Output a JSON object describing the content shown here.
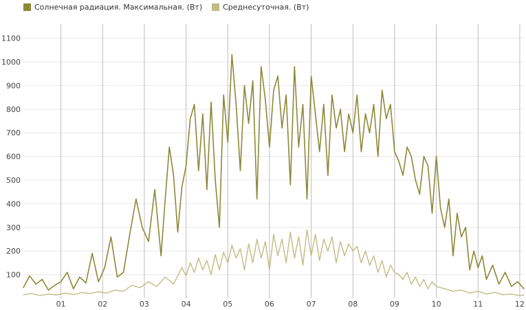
{
  "legend": {
    "max_label": "Солнечная радиация. Максимальная. (Вт)",
    "avg_label": "Среднесуточная. (Вт)"
  },
  "colors": {
    "max": "#8c8838",
    "avg": "#bfbd84",
    "vgrid": "#bdbdbd",
    "hgrid": "#e8e8e8"
  },
  "chart_data": {
    "type": "line",
    "title": "",
    "xlabel": "",
    "ylabel": "",
    "ylim": [
      0,
      1160
    ],
    "yticks": [
      100,
      200,
      300,
      400,
      500,
      600,
      700,
      800,
      900,
      1000,
      1100
    ],
    "x_unit": "month",
    "xlim": [
      0.1,
      12.1
    ],
    "xticks": [
      {
        "value": 1,
        "label": "01"
      },
      {
        "value": 2,
        "label": "02"
      },
      {
        "value": 3,
        "label": "03"
      },
      {
        "value": 4,
        "label": "04"
      },
      {
        "value": 5,
        "label": "05"
      },
      {
        "value": 6,
        "label": "06"
      },
      {
        "value": 7,
        "label": "07"
      },
      {
        "value": 8,
        "label": "08"
      },
      {
        "value": 9,
        "label": "09"
      },
      {
        "value": 10,
        "label": "10"
      },
      {
        "value": 11,
        "label": "11"
      },
      {
        "value": 12,
        "label": "12"
      }
    ],
    "legend_position": "top-left",
    "grid": {
      "vertical": true,
      "horizontal": true
    },
    "series": [
      {
        "name": "Солнечная радиация. Максимальная. (Вт)",
        "color": "#8c8838",
        "points": [
          [
            0.1,
            45
          ],
          [
            0.25,
            95
          ],
          [
            0.4,
            60
          ],
          [
            0.55,
            80
          ],
          [
            0.7,
            35
          ],
          [
            0.85,
            55
          ],
          [
            1.0,
            70
          ],
          [
            1.15,
            110
          ],
          [
            1.3,
            40
          ],
          [
            1.45,
            90
          ],
          [
            1.6,
            65
          ],
          [
            1.75,
            190
          ],
          [
            1.9,
            70
          ],
          [
            2.05,
            130
          ],
          [
            2.2,
            260
          ],
          [
            2.35,
            90
          ],
          [
            2.5,
            110
          ],
          [
            2.65,
            270
          ],
          [
            2.8,
            420
          ],
          [
            2.95,
            300
          ],
          [
            3.1,
            240
          ],
          [
            3.25,
            460
          ],
          [
            3.4,
            180
          ],
          [
            3.5,
            420
          ],
          [
            3.6,
            640
          ],
          [
            3.7,
            520
          ],
          [
            3.8,
            280
          ],
          [
            3.9,
            470
          ],
          [
            4.0,
            560
          ],
          [
            4.1,
            760
          ],
          [
            4.2,
            820
          ],
          [
            4.3,
            540
          ],
          [
            4.4,
            780
          ],
          [
            4.5,
            460
          ],
          [
            4.6,
            830
          ],
          [
            4.7,
            500
          ],
          [
            4.8,
            300
          ],
          [
            4.9,
            860
          ],
          [
            5.0,
            660
          ],
          [
            5.1,
            1030
          ],
          [
            5.2,
            820
          ],
          [
            5.3,
            540
          ],
          [
            5.4,
            900
          ],
          [
            5.5,
            740
          ],
          [
            5.6,
            920
          ],
          [
            5.7,
            420
          ],
          [
            5.8,
            980
          ],
          [
            5.9,
            840
          ],
          [
            6.0,
            640
          ],
          [
            6.1,
            880
          ],
          [
            6.2,
            940
          ],
          [
            6.3,
            720
          ],
          [
            6.4,
            860
          ],
          [
            6.5,
            480
          ],
          [
            6.6,
            980
          ],
          [
            6.7,
            640
          ],
          [
            6.8,
            820
          ],
          [
            6.9,
            420
          ],
          [
            7.0,
            940
          ],
          [
            7.1,
            780
          ],
          [
            7.2,
            620
          ],
          [
            7.3,
            820
          ],
          [
            7.4,
            520
          ],
          [
            7.5,
            860
          ],
          [
            7.6,
            720
          ],
          [
            7.7,
            800
          ],
          [
            7.8,
            620
          ],
          [
            7.9,
            780
          ],
          [
            8.0,
            700
          ],
          [
            8.1,
            860
          ],
          [
            8.2,
            620
          ],
          [
            8.3,
            780
          ],
          [
            8.4,
            700
          ],
          [
            8.5,
            820
          ],
          [
            8.6,
            600
          ],
          [
            8.7,
            880
          ],
          [
            8.8,
            760
          ],
          [
            8.9,
            820
          ],
          [
            9.0,
            620
          ],
          [
            9.1,
            580
          ],
          [
            9.2,
            520
          ],
          [
            9.3,
            640
          ],
          [
            9.4,
            600
          ],
          [
            9.5,
            500
          ],
          [
            9.6,
            440
          ],
          [
            9.7,
            600
          ],
          [
            9.8,
            560
          ],
          [
            9.9,
            360
          ],
          [
            10.0,
            600
          ],
          [
            10.1,
            380
          ],
          [
            10.2,
            300
          ],
          [
            10.3,
            420
          ],
          [
            10.4,
            180
          ],
          [
            10.5,
            360
          ],
          [
            10.6,
            260
          ],
          [
            10.7,
            300
          ],
          [
            10.8,
            120
          ],
          [
            10.9,
            200
          ],
          [
            11.0,
            130
          ],
          [
            11.1,
            180
          ],
          [
            11.2,
            80
          ],
          [
            11.35,
            140
          ],
          [
            11.5,
            60
          ],
          [
            11.65,
            110
          ],
          [
            11.8,
            50
          ],
          [
            11.95,
            70
          ],
          [
            12.1,
            40
          ]
        ]
      },
      {
        "name": "Среднесуточная. (Вт)",
        "color": "#bfbd84",
        "points": [
          [
            0.1,
            15
          ],
          [
            0.3,
            20
          ],
          [
            0.5,
            12
          ],
          [
            0.7,
            18
          ],
          [
            0.9,
            14
          ],
          [
            1.1,
            22
          ],
          [
            1.3,
            16
          ],
          [
            1.5,
            24
          ],
          [
            1.7,
            20
          ],
          [
            1.9,
            28
          ],
          [
            2.1,
            22
          ],
          [
            2.3,
            35
          ],
          [
            2.5,
            30
          ],
          [
            2.7,
            55
          ],
          [
            2.9,
            45
          ],
          [
            3.1,
            70
          ],
          [
            3.3,
            50
          ],
          [
            3.5,
            90
          ],
          [
            3.7,
            60
          ],
          [
            3.9,
            130
          ],
          [
            4.0,
            95
          ],
          [
            4.1,
            150
          ],
          [
            4.2,
            110
          ],
          [
            4.3,
            170
          ],
          [
            4.4,
            120
          ],
          [
            4.5,
            160
          ],
          [
            4.6,
            100
          ],
          [
            4.7,
            185
          ],
          [
            4.8,
            120
          ],
          [
            4.9,
            195
          ],
          [
            5.0,
            150
          ],
          [
            5.1,
            225
          ],
          [
            5.2,
            170
          ],
          [
            5.3,
            210
          ],
          [
            5.4,
            120
          ],
          [
            5.5,
            230
          ],
          [
            5.6,
            150
          ],
          [
            5.7,
            250
          ],
          [
            5.8,
            170
          ],
          [
            5.9,
            240
          ],
          [
            6.0,
            120
          ],
          [
            6.1,
            270
          ],
          [
            6.2,
            180
          ],
          [
            6.3,
            250
          ],
          [
            6.4,
            150
          ],
          [
            6.5,
            280
          ],
          [
            6.6,
            170
          ],
          [
            6.7,
            260
          ],
          [
            6.8,
            140
          ],
          [
            6.9,
            290
          ],
          [
            7.0,
            180
          ],
          [
            7.1,
            270
          ],
          [
            7.2,
            160
          ],
          [
            7.3,
            250
          ],
          [
            7.4,
            200
          ],
          [
            7.5,
            260
          ],
          [
            7.6,
            150
          ],
          [
            7.7,
            240
          ],
          [
            7.8,
            180
          ],
          [
            7.9,
            230
          ],
          [
            8.0,
            200
          ],
          [
            8.1,
            220
          ],
          [
            8.2,
            150
          ],
          [
            8.3,
            200
          ],
          [
            8.4,
            140
          ],
          [
            8.5,
            180
          ],
          [
            8.6,
            110
          ],
          [
            8.7,
            160
          ],
          [
            8.8,
            90
          ],
          [
            8.9,
            140
          ],
          [
            9.0,
            110
          ],
          [
            9.1,
            100
          ],
          [
            9.2,
            80
          ],
          [
            9.3,
            110
          ],
          [
            9.4,
            60
          ],
          [
            9.5,
            90
          ],
          [
            9.6,
            50
          ],
          [
            9.7,
            80
          ],
          [
            9.8,
            40
          ],
          [
            9.9,
            70
          ],
          [
            10.0,
            50
          ],
          [
            10.2,
            40
          ],
          [
            10.4,
            30
          ],
          [
            10.6,
            35
          ],
          [
            10.8,
            22
          ],
          [
            11.0,
            30
          ],
          [
            11.2,
            18
          ],
          [
            11.4,
            25
          ],
          [
            11.6,
            15
          ],
          [
            11.8,
            18
          ],
          [
            12.0,
            12
          ],
          [
            12.1,
            14
          ]
        ]
      }
    ]
  }
}
